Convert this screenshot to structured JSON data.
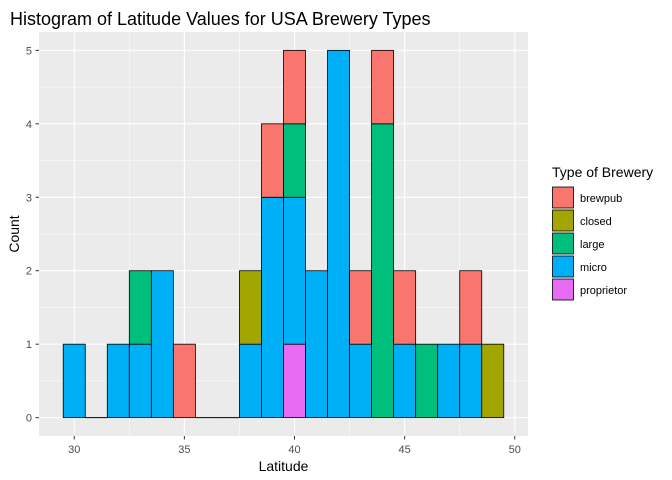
{
  "chart_data": {
    "type": "bar",
    "subtype": "stacked-histogram",
    "title": "Histogram of Latitude Values for USA Brewery Types",
    "xlabel": "Latitude",
    "ylabel": "Count",
    "xlim": [
      28.4,
      50.6
    ],
    "ylim": [
      -0.25,
      5.25
    ],
    "x_ticks": [
      30,
      35,
      40,
      45,
      50
    ],
    "y_ticks": [
      0,
      1,
      2,
      3,
      4,
      5
    ],
    "grid": true,
    "bin_width": 1.0,
    "bin_centers": [
      30,
      31,
      32,
      33,
      34,
      35,
      36,
      37,
      38,
      39,
      40,
      41,
      42,
      43,
      44,
      45,
      46,
      47,
      48,
      49
    ],
    "series": [
      {
        "name": "brewpub",
        "color": "#F8766D",
        "values": [
          0,
          0,
          0,
          0,
          0,
          1,
          0,
          0,
          0,
          1,
          1,
          0,
          0,
          1,
          1,
          1,
          0,
          0,
          1,
          0
        ]
      },
      {
        "name": "closed",
        "color": "#A3A500",
        "values": [
          0,
          0,
          0,
          0,
          0,
          0,
          0,
          0,
          1,
          0,
          0,
          0,
          0,
          0,
          0,
          0,
          0,
          0,
          0,
          1
        ]
      },
      {
        "name": "large",
        "color": "#00BF7D",
        "values": [
          0,
          0,
          0,
          1,
          0,
          0,
          0,
          0,
          0,
          0,
          1,
          0,
          0,
          0,
          4,
          0,
          1,
          0,
          0,
          0
        ]
      },
      {
        "name": "micro",
        "color": "#00B0F6",
        "values": [
          1,
          0,
          1,
          1,
          2,
          0,
          0,
          0,
          1,
          3,
          2,
          2,
          5,
          1,
          0,
          1,
          0,
          1,
          1,
          0
        ]
      },
      {
        "name": "proprietor",
        "color": "#E76BF3",
        "values": [
          0,
          0,
          0,
          0,
          0,
          0,
          0,
          0,
          0,
          0,
          1,
          0,
          0,
          0,
          0,
          0,
          0,
          0,
          0,
          0
        ]
      }
    ],
    "legend": {
      "title": "Type of Brewery",
      "position": "right"
    },
    "panel_background": "#EBEBEB",
    "grid_color": "#FFFFFF"
  }
}
